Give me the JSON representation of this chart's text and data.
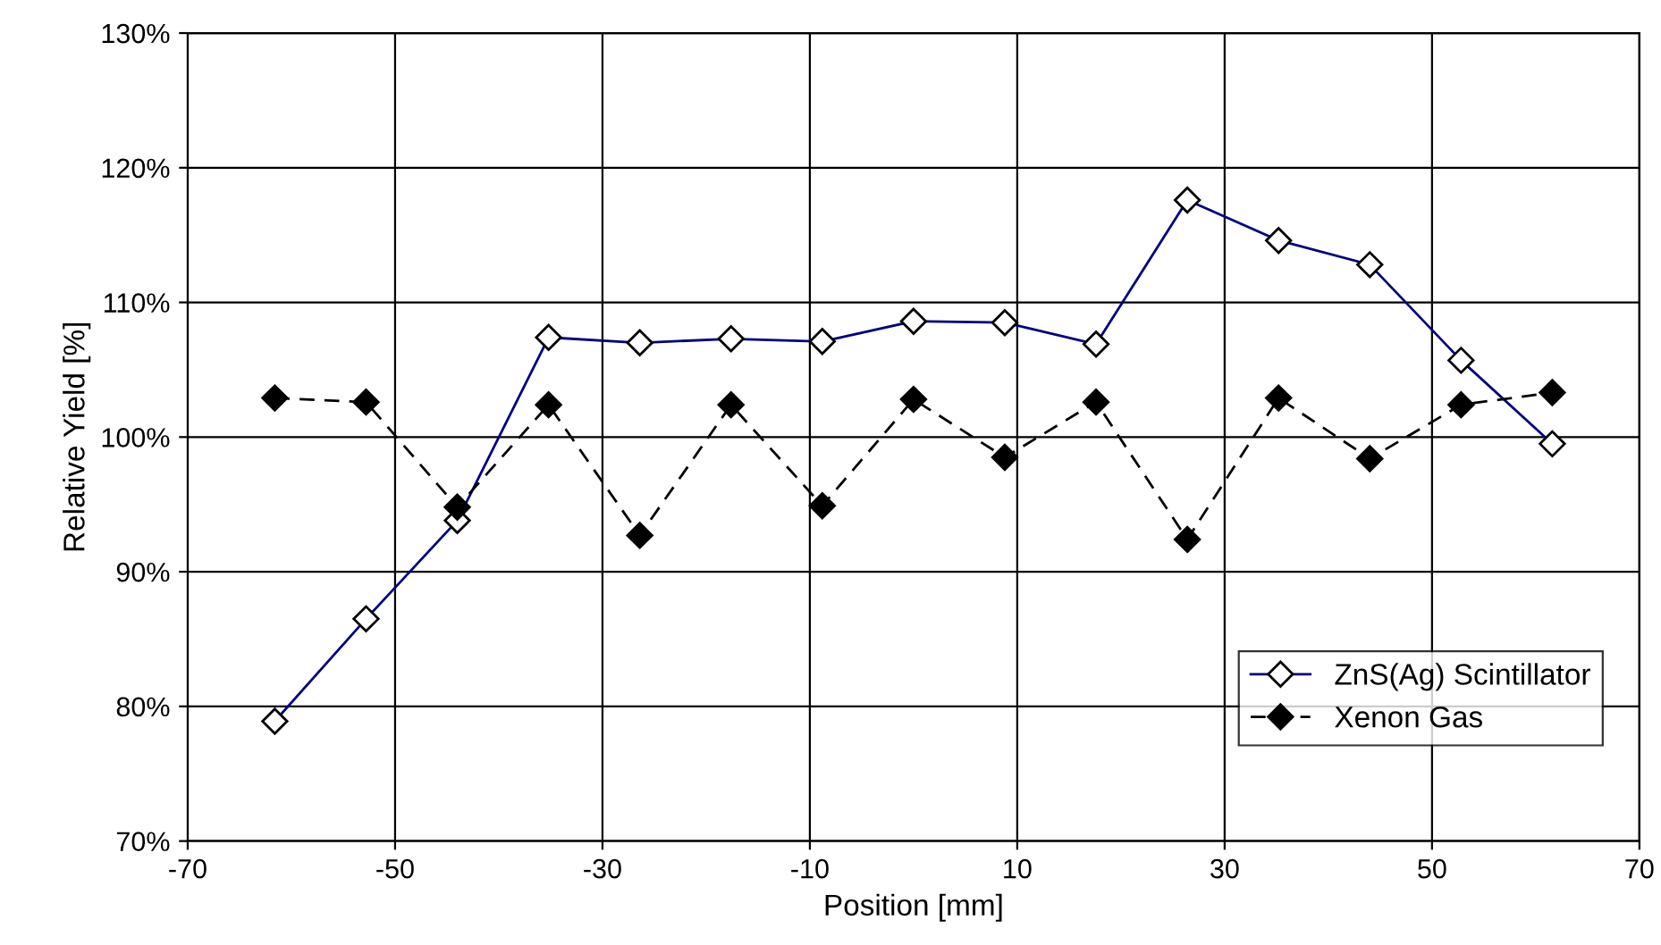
{
  "chart_data": {
    "type": "line",
    "xlabel": "Position [mm]",
    "ylabel": "Relative Yield [%]",
    "x": [
      -61.6,
      -52.8,
      -44,
      -35.2,
      -26.4,
      -17.6,
      -8.8,
      0,
      8.8,
      17.6,
      26.4,
      35.2,
      44,
      52.8,
      61.6
    ],
    "series": [
      {
        "name": "ZnS(Ag) Scintillator",
        "color": "#000080",
        "line_style": "solid",
        "values": [
          78.9,
          86.5,
          93.8,
          107.4,
          107.0,
          107.3,
          107.1,
          108.6,
          108.5,
          106.9,
          117.6,
          114.6,
          112.8,
          105.7,
          99.5
        ]
      },
      {
        "name": "Xenon Gas",
        "color": "#000000",
        "line_style": "dashed",
        "values": [
          102.9,
          102.6,
          94.8,
          102.4,
          92.7,
          102.4,
          94.9,
          102.8,
          98.5,
          102.6,
          92.4,
          102.9,
          98.4,
          102.4,
          103.3
        ]
      }
    ],
    "xlim": [
      -70,
      70
    ],
    "xticks": [
      -70,
      -50,
      -30,
      -10,
      10,
      30,
      50,
      70
    ],
    "ylim": [
      70,
      130
    ],
    "yticks": [
      {
        "value": 70,
        "label": "70%"
      },
      {
        "value": 80,
        "label": "80%"
      },
      {
        "value": 90,
        "label": "90%"
      },
      {
        "value": 100,
        "label": "100%"
      },
      {
        "value": 110,
        "label": "110%"
      },
      {
        "value": 120,
        "label": "120%"
      },
      {
        "value": 130,
        "label": "130%"
      }
    ],
    "grid": true,
    "legend": "lower right",
    "marker": "diamond"
  }
}
